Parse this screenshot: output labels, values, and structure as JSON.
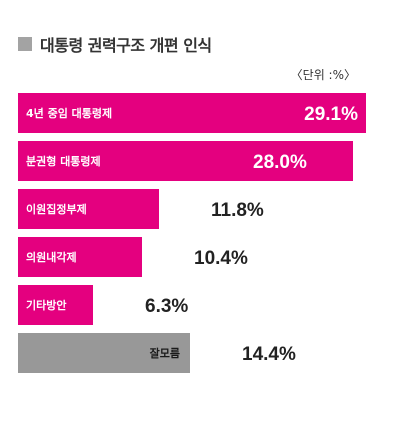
{
  "title": "대통령 권력구조 개편 인식",
  "unit_note": "〈단위 :%〉",
  "colors": {
    "bar": "#e4007f",
    "bar_unknown": "#989898",
    "title_square": "#a3a3a3",
    "label_on_bar": "#ffffff",
    "value_text": "#222222",
    "value_text_on_bar": "#ffffff"
  },
  "chart_data": {
    "type": "bar",
    "orientation": "horizontal",
    "title": "대통령 권력구조 개편 인식",
    "unit": "〈단위 :%〉",
    "categories": [
      "4년 중임 대통령제",
      "분권형 대통령제",
      "이원집정부제",
      "의원내각제",
      "기타방안",
      "잘모름"
    ],
    "values": [
      29.1,
      28.0,
      11.8,
      10.4,
      6.3,
      14.4
    ],
    "value_labels": [
      "29.1%",
      "28.0%",
      "11.8%",
      "10.4%",
      "6.3%",
      "14.4%"
    ],
    "xlim": [
      0,
      29.1
    ],
    "grid": false,
    "legend": "none"
  }
}
